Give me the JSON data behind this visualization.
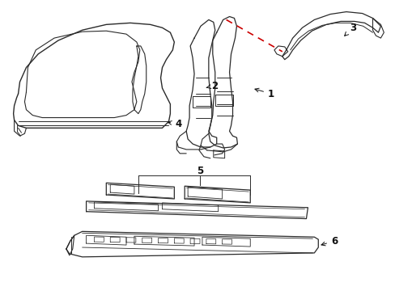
{
  "background_color": "#ffffff",
  "line_color": "#2a2a2a",
  "label_color": "#111111",
  "red_dash_color": "#cc0000",
  "fig_width": 4.89,
  "fig_height": 3.6,
  "dpi": 100
}
